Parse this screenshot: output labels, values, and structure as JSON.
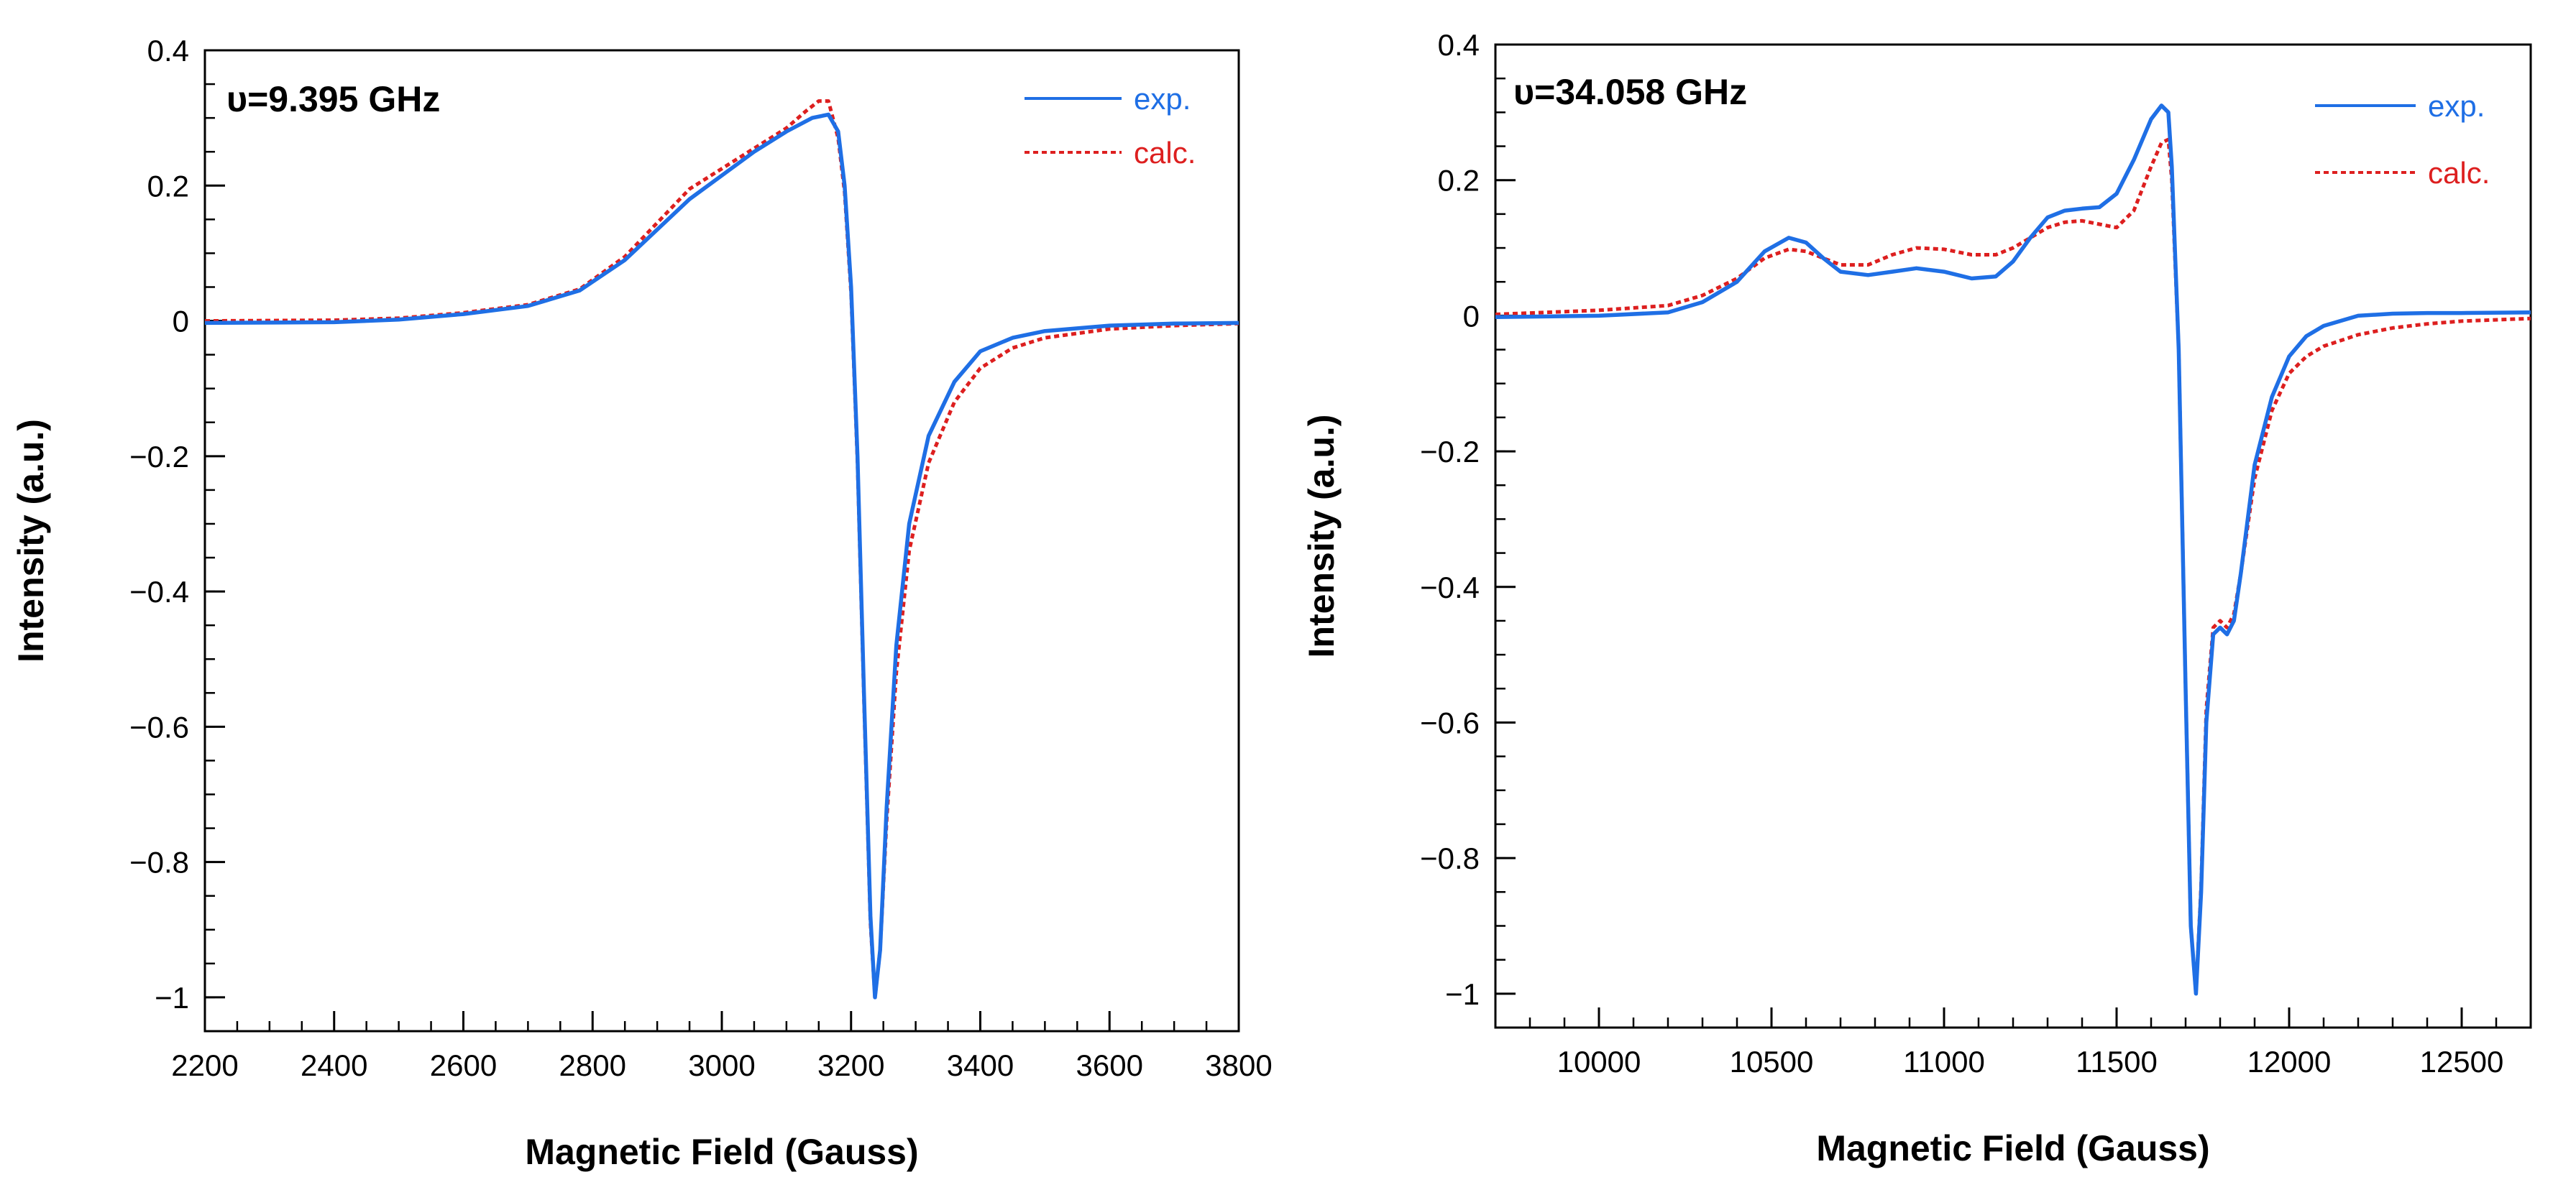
{
  "chart_data": [
    {
      "type": "line",
      "annotation": "υ=9.395 GHz",
      "xlabel": "Magnetic Field (Gauss)",
      "ylabel": "Intensity (a.u.)",
      "xlim": [
        2200,
        3800
      ],
      "ylim": [
        -1.05,
        0.4
      ],
      "x_major_ticks": [
        2200,
        2400,
        2600,
        2800,
        3000,
        3200,
        3400,
        3600,
        3800
      ],
      "x_tick_labels": [
        "2200",
        "2400",
        "2600",
        "2800",
        "3000",
        "3200",
        "3400",
        "3600",
        "3800"
      ],
      "x_minor_step": 50,
      "y_major_ticks": [
        -1,
        -0.8,
        -0.6,
        -0.4,
        -0.2,
        0,
        0.2,
        0.4
      ],
      "y_tick_labels": [
        "−1",
        "−0.8",
        "−0.6",
        "−0.4",
        "−0.2",
        "0",
        "0.2",
        "0.4"
      ],
      "y_minor_step": 0.05,
      "legend_position": "top-right",
      "series": [
        {
          "name": "exp.",
          "color": "#1f6fe5",
          "style": "solid",
          "x": [
            2200,
            2400,
            2500,
            2600,
            2700,
            2780,
            2850,
            2900,
            2950,
            3000,
            3050,
            3100,
            3140,
            3165,
            3180,
            3190,
            3200,
            3210,
            3220,
            3230,
            3237,
            3245,
            3255,
            3270,
            3290,
            3320,
            3360,
            3400,
            3450,
            3500,
            3600,
            3700,
            3800
          ],
          "values": [
            -0.003,
            -0.002,
            0.002,
            0.01,
            0.022,
            0.045,
            0.09,
            0.135,
            0.18,
            0.215,
            0.25,
            0.28,
            0.3,
            0.305,
            0.28,
            0.2,
            0.05,
            -0.2,
            -0.55,
            -0.88,
            -1.0,
            -0.93,
            -0.72,
            -0.48,
            -0.3,
            -0.17,
            -0.09,
            -0.045,
            -0.025,
            -0.015,
            -0.007,
            -0.004,
            -0.003
          ]
        },
        {
          "name": "calc.",
          "color": "#dd1f1f",
          "style": "dotted",
          "x": [
            2200,
            2400,
            2500,
            2600,
            2700,
            2780,
            2850,
            2900,
            2950,
            3000,
            3050,
            3100,
            3130,
            3150,
            3165,
            3180,
            3190,
            3200,
            3210,
            3220,
            3230,
            3237,
            3245,
            3255,
            3270,
            3290,
            3320,
            3360,
            3400,
            3450,
            3500,
            3600,
            3700,
            3800
          ],
          "values": [
            0.0,
            0.001,
            0.004,
            0.012,
            0.024,
            0.047,
            0.095,
            0.145,
            0.195,
            0.225,
            0.255,
            0.285,
            0.31,
            0.325,
            0.325,
            0.27,
            0.19,
            0.04,
            -0.21,
            -0.56,
            -0.89,
            -1.0,
            -0.93,
            -0.74,
            -0.52,
            -0.34,
            -0.21,
            -0.12,
            -0.07,
            -0.04,
            -0.025,
            -0.012,
            -0.007,
            -0.004
          ]
        }
      ]
    },
    {
      "type": "line",
      "annotation": "υ=34.058 GHz",
      "xlabel": "Magnetic Field (Gauss)",
      "ylabel": "Intensity (a.u.)",
      "xlim": [
        9700,
        12700
      ],
      "ylim": [
        -1.05,
        0.4
      ],
      "x_major_ticks": [
        10000,
        10500,
        11000,
        11500,
        12000,
        12500
      ],
      "x_tick_labels": [
        "10000",
        "10500",
        "11000",
        "11500",
        "12000",
        "12500"
      ],
      "x_minor_step": 100,
      "y_major_ticks": [
        -1,
        -0.8,
        -0.6,
        -0.4,
        -0.2,
        0,
        0.2,
        0.4
      ],
      "y_tick_labels": [
        "−1",
        "−0.8",
        "−0.6",
        "−0.4",
        "−0.2",
        "0",
        "0.2",
        "0.4"
      ],
      "y_minor_step": 0.05,
      "legend_position": "top-right",
      "series": [
        {
          "name": "exp.",
          "color": "#1f6fe5",
          "style": "solid",
          "x": [
            9700,
            10000,
            10200,
            10300,
            10400,
            10480,
            10550,
            10600,
            10650,
            10700,
            10780,
            10850,
            10920,
            11000,
            11080,
            11150,
            11200,
            11250,
            11300,
            11350,
            11400,
            11450,
            11500,
            11550,
            11600,
            11630,
            11650,
            11660,
            11680,
            11700,
            11715,
            11730,
            11745,
            11760,
            11780,
            11800,
            11820,
            11840,
            11860,
            11880,
            11900,
            11950,
            12000,
            12050,
            12100,
            12200,
            12300,
            12400,
            12500,
            12700
          ],
          "values": [
            -0.002,
            0.0,
            0.005,
            0.02,
            0.05,
            0.095,
            0.115,
            0.108,
            0.085,
            0.065,
            0.06,
            0.065,
            0.07,
            0.065,
            0.055,
            0.058,
            0.08,
            0.115,
            0.145,
            0.155,
            0.158,
            0.16,
            0.18,
            0.23,
            0.29,
            0.31,
            0.3,
            0.22,
            -0.05,
            -0.55,
            -0.9,
            -1.0,
            -0.85,
            -0.6,
            -0.47,
            -0.46,
            -0.47,
            -0.45,
            -0.38,
            -0.3,
            -0.22,
            -0.12,
            -0.06,
            -0.03,
            -0.015,
            0.0,
            0.003,
            0.004,
            0.004,
            0.005
          ]
        },
        {
          "name": "calc.",
          "color": "#dd1f1f",
          "style": "dotted",
          "x": [
            9700,
            10000,
            10200,
            10300,
            10400,
            10480,
            10550,
            10600,
            10650,
            10700,
            10780,
            10850,
            10920,
            11000,
            11080,
            11150,
            11200,
            11250,
            11300,
            11350,
            11400,
            11450,
            11500,
            11550,
            11600,
            11630,
            11650,
            11660,
            11680,
            11700,
            11715,
            11730,
            11745,
            11760,
            11780,
            11800,
            11820,
            11840,
            11860,
            11880,
            11900,
            11950,
            12000,
            12050,
            12100,
            12200,
            12300,
            12400,
            12500,
            12700
          ],
          "values": [
            0.002,
            0.008,
            0.015,
            0.03,
            0.055,
            0.085,
            0.098,
            0.095,
            0.085,
            0.075,
            0.075,
            0.09,
            0.1,
            0.098,
            0.09,
            0.09,
            0.1,
            0.115,
            0.13,
            0.138,
            0.14,
            0.135,
            0.13,
            0.155,
            0.22,
            0.255,
            0.26,
            0.2,
            -0.05,
            -0.55,
            -0.9,
            -1.0,
            -0.84,
            -0.58,
            -0.46,
            -0.45,
            -0.46,
            -0.44,
            -0.38,
            -0.31,
            -0.24,
            -0.14,
            -0.085,
            -0.06,
            -0.045,
            -0.028,
            -0.018,
            -0.012,
            -0.008,
            -0.004
          ]
        }
      ]
    }
  ]
}
